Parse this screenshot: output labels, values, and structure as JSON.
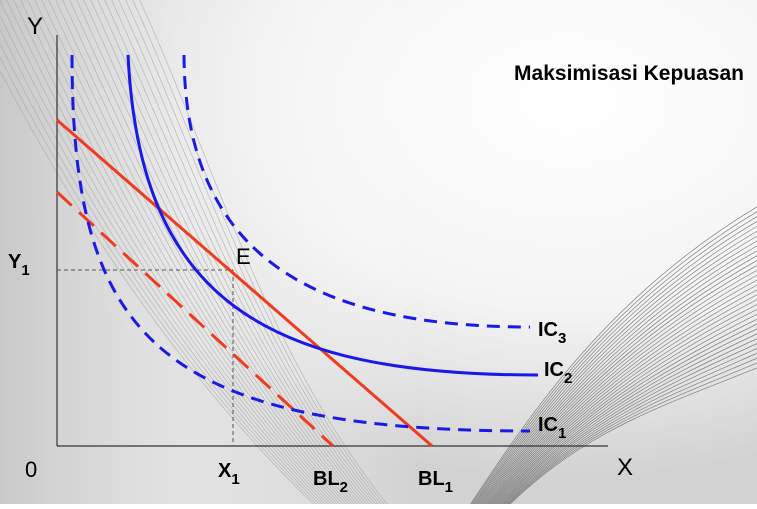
{
  "title": "Maksimisasi Kepuasan",
  "axes": {
    "x_label": "X",
    "y_label": "Y",
    "origin_label": "0"
  },
  "equilibrium": {
    "point_label": "E",
    "x_label_main": "X",
    "x_label_sub": "1",
    "y_label_main": "Y",
    "y_label_sub": "1"
  },
  "curves": {
    "ic1": {
      "main": "IC",
      "sub": "1"
    },
    "ic2": {
      "main": "IC",
      "sub": "2"
    },
    "ic3": {
      "main": "IC",
      "sub": "3"
    },
    "bl1": {
      "main": "BL",
      "sub": "1"
    },
    "bl2": {
      "main": "BL",
      "sub": "2"
    }
  },
  "colors": {
    "indifference_curve": "#1a1ae6",
    "budget_line": "#f03c1e",
    "guide_line": "#555555",
    "axis": "#333333"
  }
}
